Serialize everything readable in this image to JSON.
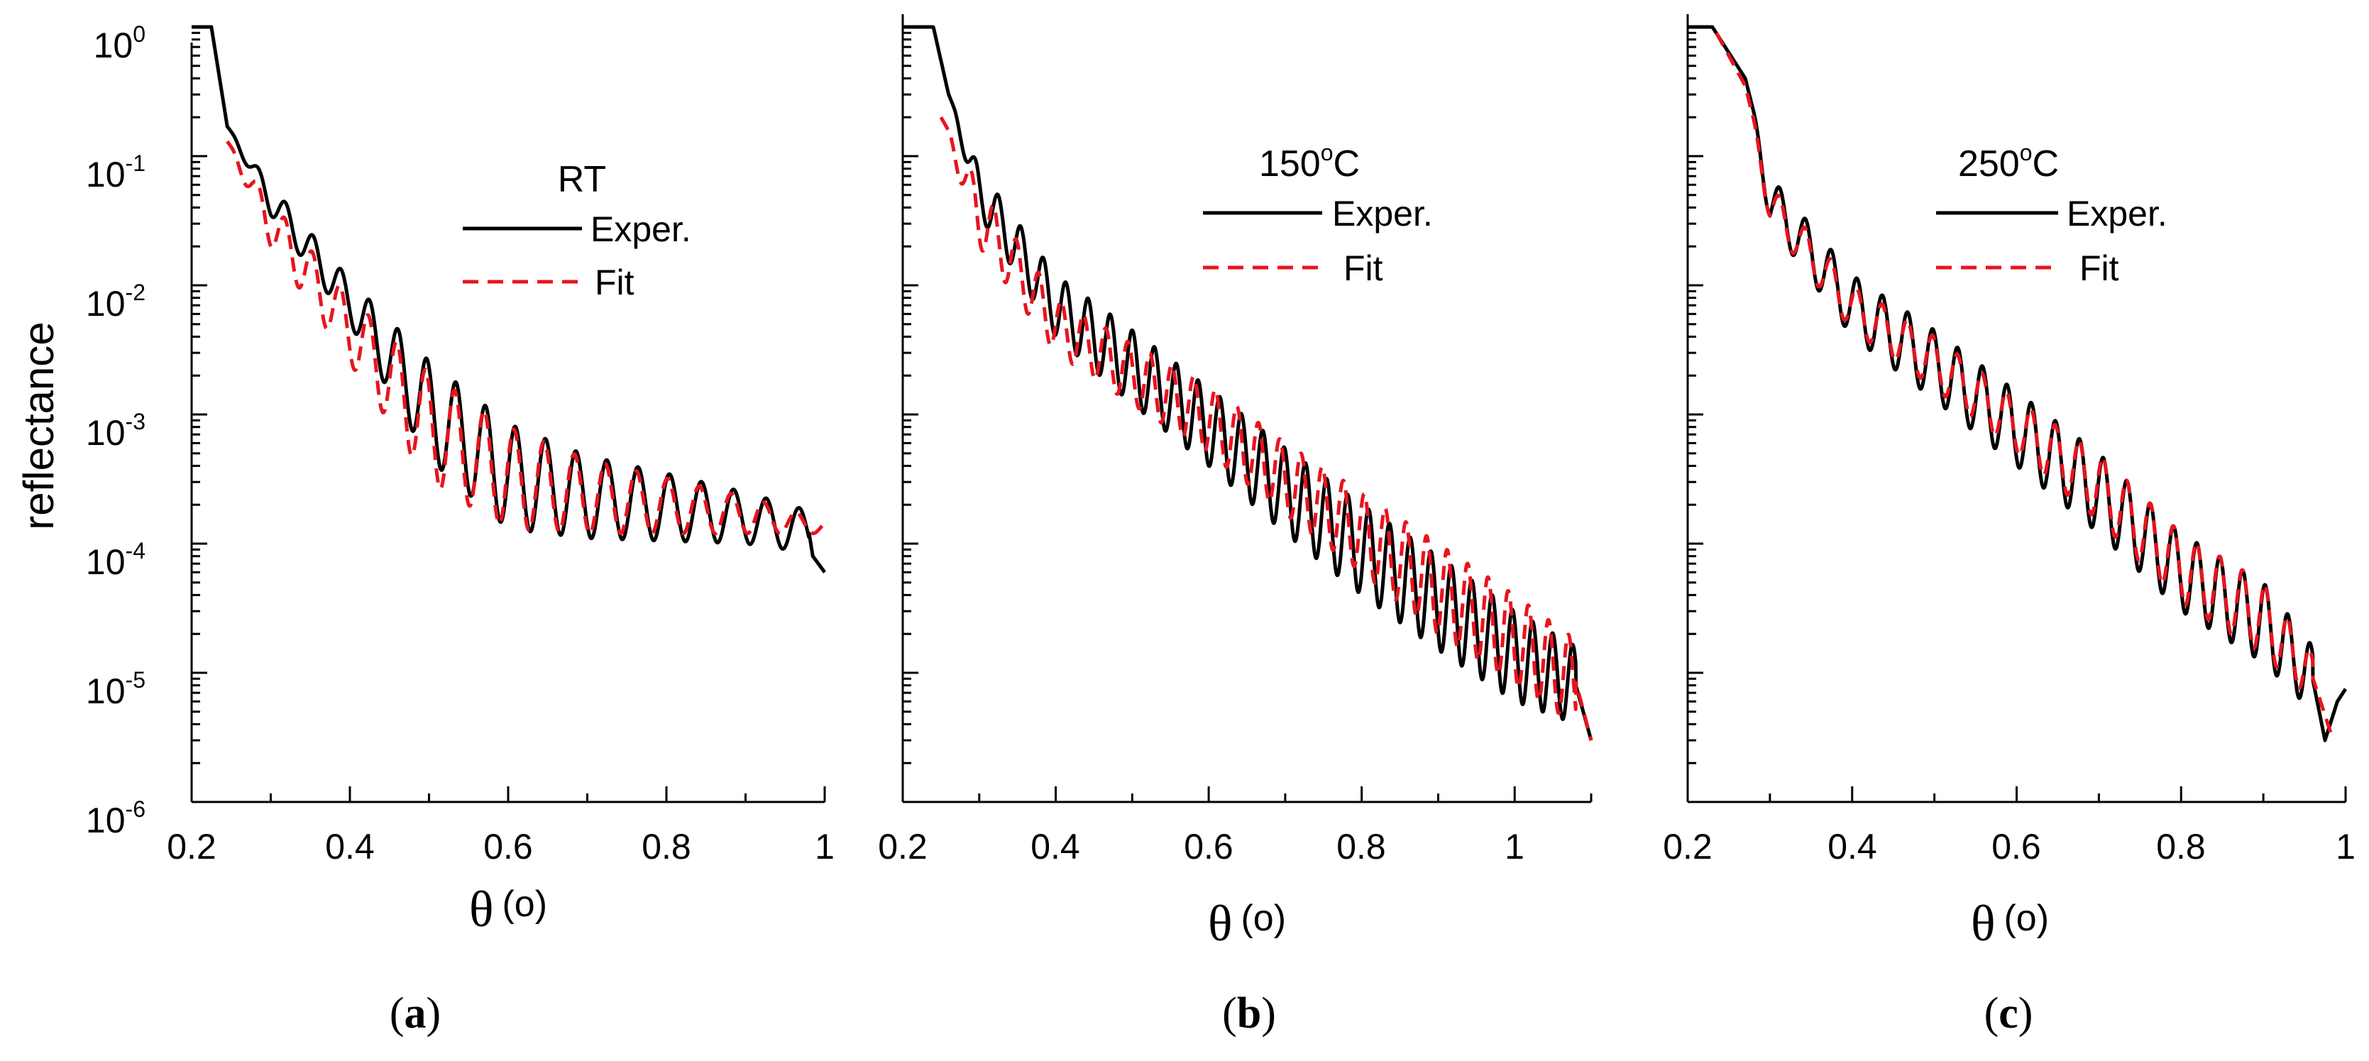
{
  "ylabel": "reflectance",
  "xlabel": {
    "symbol": "θ",
    "unit": "(o)"
  },
  "legend": {
    "experimental": "Exper.",
    "fit": "Fit"
  },
  "colors": {
    "experimental": "#000000",
    "fit": "#e8141e"
  },
  "y_ticks": [
    {
      "base": "10",
      "exp": "0"
    },
    {
      "base": "10",
      "exp": "-1"
    },
    {
      "base": "10",
      "exp": "-2"
    },
    {
      "base": "10",
      "exp": "-3"
    },
    {
      "base": "10",
      "exp": "-4"
    },
    {
      "base": "10",
      "exp": "-5"
    },
    {
      "base": "10",
      "exp": "-6"
    }
  ],
  "chart_data": [
    {
      "type": "line",
      "panel": "a",
      "caption": "a",
      "title": "RT",
      "title_superscript": "",
      "xlim": [
        0.2,
        1.0
      ],
      "ylim": [
        1e-06,
        1.0
      ],
      "yscale": "log",
      "x_ticks": [
        "0.2",
        "0.4",
        "0.6",
        "0.8",
        "1"
      ],
      "x_tick_values": [
        0.2,
        0.4,
        0.6,
        0.8,
        1.0
      ],
      "series": [
        {
          "name": "Exper.",
          "style": "solid",
          "color": "#000000",
          "model": {
            "x_start": 0.2,
            "x_end": 1.0,
            "plateau_end": 0.225,
            "upper": [
              [
                0.225,
                1.0
              ],
              [
                0.245,
                0.17
              ],
              [
                0.3,
                0.06
              ],
              [
                0.4,
                0.011
              ],
              [
                0.5,
                0.0026
              ],
              [
                0.6,
                0.00085
              ],
              [
                0.7,
                0.00048
              ],
              [
                0.8,
                0.00035
              ],
              [
                0.9,
                0.00025
              ],
              [
                0.98,
                0.00018
              ]
            ],
            "lower": [
              [
                0.225,
                1.0
              ],
              [
                0.245,
                0.17
              ],
              [
                0.3,
                0.035
              ],
              [
                0.4,
                0.005
              ],
              [
                0.5,
                0.00045
              ],
              [
                0.6,
                0.00013
              ],
              [
                0.7,
                0.00011
              ],
              [
                0.8,
                0.000105
              ],
              [
                0.9,
                0.0001
              ],
              [
                0.98,
                8.5e-05
              ]
            ],
            "osc_start": 0.25,
            "period_start": 0.034,
            "period_end": 0.042,
            "phase": 0.0,
            "tail": [
              [
                0.985,
                8e-05
              ],
              [
                1.0,
                6e-05
              ]
            ]
          }
        },
        {
          "name": "Fit",
          "style": "dashed",
          "color": "#e8141e",
          "model": {
            "x_start": 0.245,
            "x_end": 1.0,
            "plateau_end": 0.245,
            "upper": [
              [
                0.245,
                0.13
              ],
              [
                0.3,
                0.045
              ],
              [
                0.4,
                0.008
              ],
              [
                0.5,
                0.0021
              ],
              [
                0.6,
                0.0008
              ],
              [
                0.7,
                0.00045
              ],
              [
                0.8,
                0.00032
              ],
              [
                0.9,
                0.00023
              ],
              [
                1.0,
                0.00015
              ]
            ],
            "lower": [
              [
                0.245,
                0.13
              ],
              [
                0.3,
                0.02
              ],
              [
                0.4,
                0.0025
              ],
              [
                0.5,
                0.0003
              ],
              [
                0.6,
                0.00013
              ],
              [
                0.7,
                0.00012
              ],
              [
                0.8,
                0.00012
              ],
              [
                0.9,
                0.00012
              ],
              [
                1.0,
                0.00012
              ]
            ],
            "osc_start": 0.25,
            "period_start": 0.034,
            "period_end": 0.042,
            "phase": 0.03,
            "tail": []
          }
        }
      ]
    },
    {
      "type": "line",
      "panel": "b",
      "caption": "b",
      "title": "150",
      "title_superscript": "o",
      "title_suffix": "C",
      "xlim": [
        0.2,
        1.1
      ],
      "ylim": [
        1e-06,
        1.0
      ],
      "yscale": "log",
      "x_ticks": [
        "0.2",
        "0.4",
        "0.6",
        "0.8",
        "1"
      ],
      "x_tick_values": [
        0.2,
        0.4,
        0.6,
        0.8,
        1.0
      ],
      "series": [
        {
          "name": "Exper.",
          "style": "solid",
          "color": "#000000",
          "model": {
            "x_start": 0.2,
            "x_end": 1.1,
            "plateau_end": 0.24,
            "upper": [
              [
                0.24,
                1.0
              ],
              [
                0.26,
                0.3
              ],
              [
                0.3,
                0.08
              ],
              [
                0.4,
                0.012
              ],
              [
                0.5,
                0.0045
              ],
              [
                0.6,
                0.0016
              ],
              [
                0.7,
                0.00055
              ],
              [
                0.8,
                0.0002
              ],
              [
                0.9,
                8e-05
              ],
              [
                1.0,
                3e-05
              ],
              [
                1.08,
                1.6e-05
              ]
            ],
            "lower": [
              [
                0.24,
                1.0
              ],
              [
                0.26,
                0.3
              ],
              [
                0.3,
                0.035
              ],
              [
                0.4,
                0.004
              ],
              [
                0.5,
                0.0012
              ],
              [
                0.6,
                0.0004
              ],
              [
                0.7,
                0.00012
              ],
              [
                0.8,
                4e-05
              ],
              [
                0.9,
                1.5e-05
              ],
              [
                1.0,
                6e-06
              ],
              [
                1.08,
                4e-06
              ]
            ],
            "osc_start": 0.265,
            "period_start": 0.03,
            "period_end": 0.026,
            "phase": 0.0,
            "tail": [
              [
                1.1,
                3e-06
              ]
            ]
          }
        },
        {
          "name": "Fit",
          "style": "dashed",
          "color": "#e8141e",
          "model": {
            "x_start": 0.25,
            "x_end": 1.1,
            "plateau_end": 0.25,
            "upper": [
              [
                0.25,
                0.2
              ],
              [
                0.3,
                0.06
              ],
              [
                0.4,
                0.008
              ],
              [
                0.5,
                0.0035
              ],
              [
                0.6,
                0.0017
              ],
              [
                0.7,
                0.0006
              ],
              [
                0.8,
                0.00025
              ],
              [
                0.9,
                0.0001
              ],
              [
                1.0,
                4e-05
              ],
              [
                1.08,
                1.8e-05
              ]
            ],
            "lower": [
              [
                0.25,
                0.2
              ],
              [
                0.3,
                0.02
              ],
              [
                0.4,
                0.003
              ],
              [
                0.5,
                0.0012
              ],
              [
                0.6,
                0.0005
              ],
              [
                0.7,
                0.00017
              ],
              [
                0.8,
                6e-05
              ],
              [
                0.9,
                2e-05
              ],
              [
                1.0,
                8e-06
              ],
              [
                1.08,
                4e-06
              ]
            ],
            "osc_start": 0.26,
            "period_start": 0.03,
            "period_end": 0.026,
            "phase": 0.03,
            "tail": [
              [
                1.1,
                3e-06
              ]
            ]
          }
        }
      ]
    },
    {
      "type": "line",
      "panel": "c",
      "caption": "c",
      "title": "250",
      "title_superscript": "o",
      "title_suffix": "C",
      "xlim": [
        0.2,
        1.0
      ],
      "ylim": [
        1e-06,
        1.0
      ],
      "yscale": "log",
      "x_ticks": [
        "0.2",
        "0.4",
        "0.6",
        "0.8",
        "1"
      ],
      "x_tick_values": [
        0.2,
        0.4,
        0.6,
        0.8,
        1.0
      ],
      "series": [
        {
          "name": "Exper.",
          "style": "solid",
          "color": "#000000",
          "model": {
            "x_start": 0.2,
            "x_end": 1.0,
            "plateau_end": 0.23,
            "upper": [
              [
                0.23,
                1.0
              ],
              [
                0.27,
                0.4
              ],
              [
                0.3,
                0.07
              ],
              [
                0.4,
                0.012
              ],
              [
                0.5,
                0.0045
              ],
              [
                0.6,
                0.0015
              ],
              [
                0.7,
                0.0005
              ],
              [
                0.8,
                0.00012
              ],
              [
                0.9,
                5e-05
              ],
              [
                0.96,
                1.6e-05
              ]
            ],
            "lower": [
              [
                0.23,
                1.0
              ],
              [
                0.27,
                0.4
              ],
              [
                0.3,
                0.03
              ],
              [
                0.4,
                0.004
              ],
              [
                0.5,
                0.0013
              ],
              [
                0.6,
                0.0004
              ],
              [
                0.7,
                0.00012
              ],
              [
                0.8,
                3e-05
              ],
              [
                0.9,
                1.2e-05
              ],
              [
                0.96,
                5e-06
              ]
            ],
            "osc_start": 0.28,
            "period_start": 0.032,
            "period_end": 0.027,
            "phase": 0.0,
            "tail": [
              [
                0.975,
                3e-06
              ],
              [
                0.99,
                6e-06
              ],
              [
                1.0,
                7.5e-06
              ]
            ]
          }
        },
        {
          "name": "Fit",
          "style": "dashed",
          "color": "#e8141e",
          "model": {
            "x_start": 0.235,
            "x_end": 0.985,
            "plateau_end": 0.235,
            "upper": [
              [
                0.235,
                0.9
              ],
              [
                0.27,
                0.35
              ],
              [
                0.3,
                0.06
              ],
              [
                0.4,
                0.01
              ],
              [
                0.5,
                0.004
              ],
              [
                0.6,
                0.0013
              ],
              [
                0.7,
                0.0005
              ],
              [
                0.8,
                0.00012
              ],
              [
                0.9,
                5e-05
              ],
              [
                0.96,
                1.4e-05
              ]
            ],
            "lower": [
              [
                0.235,
                0.9
              ],
              [
                0.27,
                0.35
              ],
              [
                0.3,
                0.03
              ],
              [
                0.4,
                0.0045
              ],
              [
                0.5,
                0.0016
              ],
              [
                0.6,
                0.0005
              ],
              [
                0.7,
                0.00015
              ],
              [
                0.8,
                3.5e-05
              ],
              [
                0.9,
                1.4e-05
              ],
              [
                0.96,
                6e-06
              ]
            ],
            "osc_start": 0.28,
            "period_start": 0.032,
            "period_end": 0.027,
            "phase": 0.02,
            "tail": [
              [
                0.985,
                3e-06
              ]
            ]
          }
        }
      ]
    }
  ]
}
